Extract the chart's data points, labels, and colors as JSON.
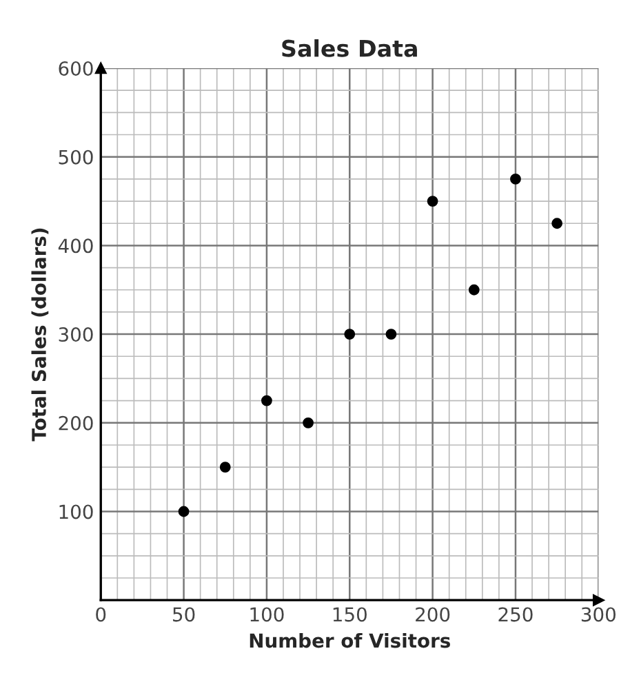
{
  "chart_data": {
    "type": "scatter",
    "title": "Sales Data",
    "xlabel": "Number of Visitors",
    "ylabel": "Total Sales (dollars)",
    "x": [
      50,
      75,
      100,
      125,
      150,
      175,
      200,
      225,
      250,
      275
    ],
    "series": [
      {
        "color": "#000000",
        "values": [
          100,
          150,
          225,
          200,
          300,
          300,
          450,
          350,
          475,
          425
        ]
      }
    ],
    "xlim": [
      0,
      300
    ],
    "ylim": [
      0,
      600
    ],
    "xticks": [
      0,
      50,
      100,
      150,
      200,
      250,
      300
    ],
    "yticks": [
      100,
      200,
      300,
      400,
      500,
      600
    ],
    "grid": true,
    "marker": "circle",
    "legend": false
  }
}
